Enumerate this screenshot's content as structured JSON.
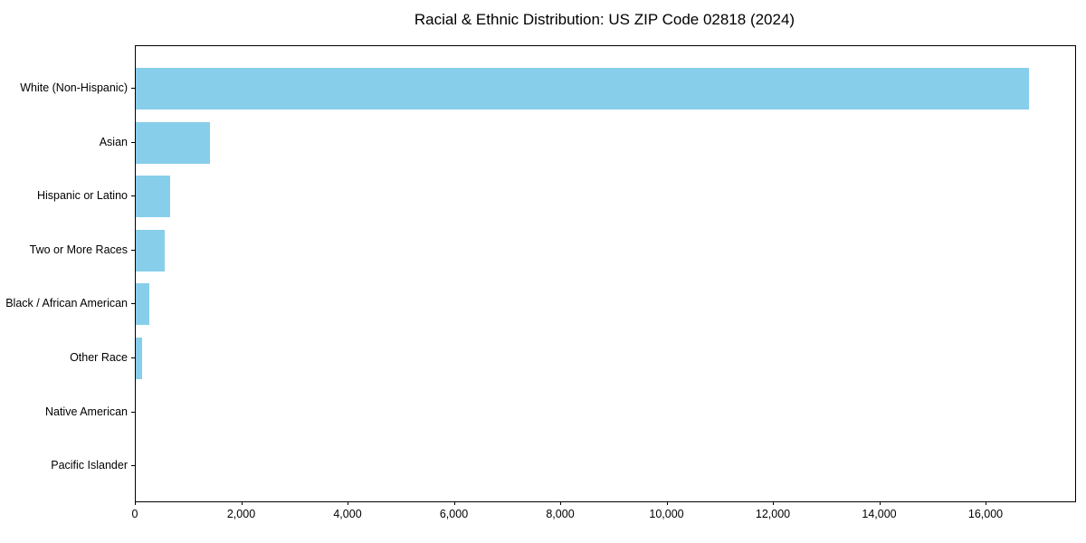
{
  "title": "Racial & Ethnic Distribution: US ZIP Code 02818 (2024)",
  "colors": {
    "bar": "#87CEEB",
    "text": "#000000",
    "spine": "#000000",
    "background": "#ffffff"
  },
  "chart_data": {
    "type": "bar",
    "orientation": "horizontal",
    "title": "Racial & Ethnic Distribution: US ZIP Code 02818 (2024)",
    "xlabel": "",
    "ylabel": "",
    "categories": [
      "White (Non-Hispanic)",
      "Asian",
      "Hispanic or Latino",
      "Two or More Races",
      "Black / African American",
      "Other Race",
      "Native American",
      "Pacific Islander"
    ],
    "values": [
      16800,
      1400,
      650,
      540,
      250,
      120,
      0,
      0
    ],
    "bar_color": "#87CEEB",
    "xlim": [
      0,
      17668
    ],
    "x_ticks": [
      0,
      2000,
      4000,
      6000,
      8000,
      10000,
      12000,
      14000,
      16000
    ],
    "x_tick_labels": [
      "0",
      "2,000",
      "4,000",
      "6,000",
      "8,000",
      "10,000",
      "12,000",
      "14,000",
      "16,000"
    ],
    "grid": false,
    "legend": false
  }
}
